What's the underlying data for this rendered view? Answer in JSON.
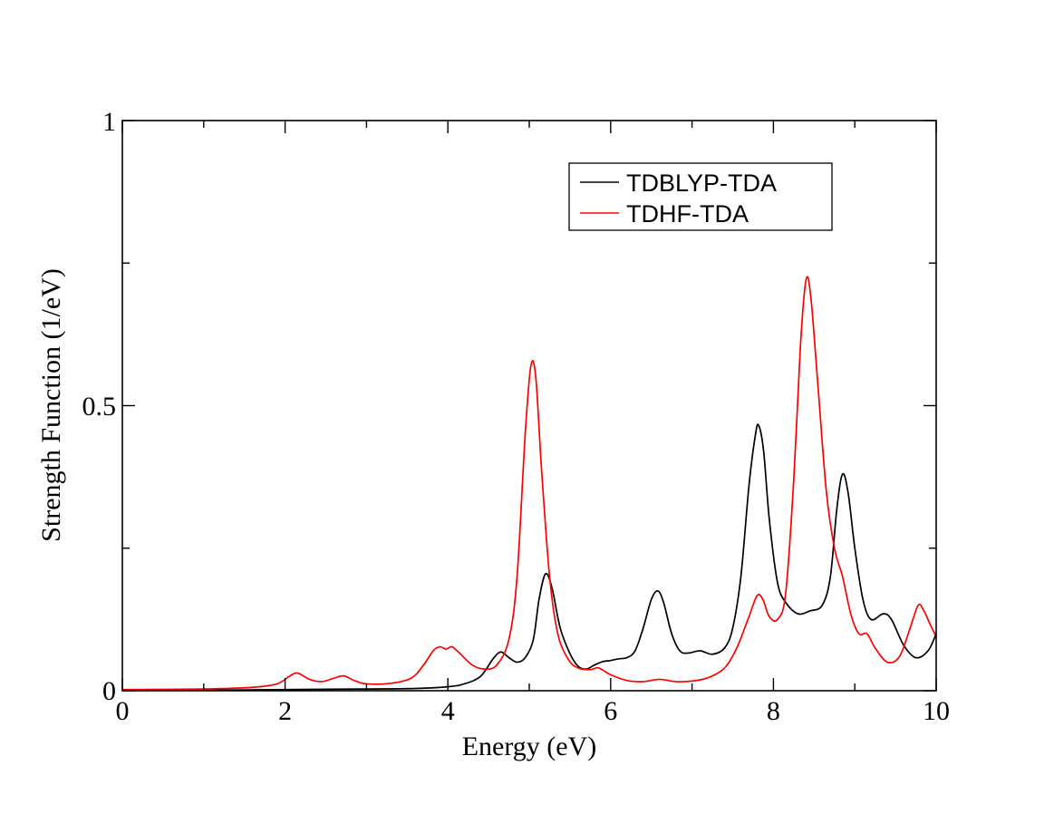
{
  "chart_data": {
    "type": "line",
    "title": "",
    "xlabel": "Energy (eV)",
    "ylabel": "Strength Function (1/eV)",
    "xlim": [
      0,
      10
    ],
    "ylim": [
      0,
      1
    ],
    "grid": false,
    "x_ticks": [
      0,
      2,
      4,
      6,
      8,
      10
    ],
    "x_tick_labels": [
      "0",
      "2",
      "4",
      "6",
      "8",
      "10"
    ],
    "y_ticks": [
      0,
      0.5,
      1
    ],
    "y_tick_labels": [
      "0",
      "0.5",
      "1"
    ],
    "legend_position": "top-right",
    "series": [
      {
        "name": "TDBLYP-TDA",
        "color": "#000000",
        "points": [
          [
            0,
            0.001
          ],
          [
            1,
            0.001
          ],
          [
            2,
            0.002
          ],
          [
            3,
            0.003
          ],
          [
            3.6,
            0.004
          ],
          [
            4,
            0.007
          ],
          [
            4.2,
            0.012
          ],
          [
            4.4,
            0.025
          ],
          [
            4.55,
            0.055
          ],
          [
            4.65,
            0.068
          ],
          [
            4.75,
            0.058
          ],
          [
            4.85,
            0.05
          ],
          [
            4.95,
            0.058
          ],
          [
            5.05,
            0.09
          ],
          [
            5.12,
            0.16
          ],
          [
            5.2,
            0.205
          ],
          [
            5.28,
            0.18
          ],
          [
            5.38,
            0.11
          ],
          [
            5.5,
            0.065
          ],
          [
            5.6,
            0.043
          ],
          [
            5.7,
            0.038
          ],
          [
            5.8,
            0.045
          ],
          [
            5.9,
            0.051
          ],
          [
            6.0,
            0.053
          ],
          [
            6.1,
            0.056
          ],
          [
            6.2,
            0.058
          ],
          [
            6.3,
            0.07
          ],
          [
            6.4,
            0.11
          ],
          [
            6.5,
            0.16
          ],
          [
            6.58,
            0.175
          ],
          [
            6.65,
            0.155
          ],
          [
            6.75,
            0.1
          ],
          [
            6.85,
            0.07
          ],
          [
            6.95,
            0.066
          ],
          [
            7.1,
            0.07
          ],
          [
            7.25,
            0.064
          ],
          [
            7.4,
            0.075
          ],
          [
            7.5,
            0.11
          ],
          [
            7.6,
            0.2
          ],
          [
            7.7,
            0.36
          ],
          [
            7.78,
            0.45
          ],
          [
            7.82,
            0.465
          ],
          [
            7.88,
            0.42
          ],
          [
            7.95,
            0.3
          ],
          [
            8.05,
            0.19
          ],
          [
            8.15,
            0.155
          ],
          [
            8.3,
            0.135
          ],
          [
            8.45,
            0.14
          ],
          [
            8.6,
            0.15
          ],
          [
            8.7,
            0.2
          ],
          [
            8.78,
            0.32
          ],
          [
            8.85,
            0.38
          ],
          [
            8.92,
            0.345
          ],
          [
            9.0,
            0.25
          ],
          [
            9.1,
            0.16
          ],
          [
            9.2,
            0.125
          ],
          [
            9.35,
            0.135
          ],
          [
            9.45,
            0.125
          ],
          [
            9.6,
            0.08
          ],
          [
            9.75,
            0.058
          ],
          [
            9.9,
            0.07
          ],
          [
            10,
            0.1
          ]
        ]
      },
      {
        "name": "TDHF-TDA",
        "color": "#ff0000",
        "points": [
          [
            0,
            0.002
          ],
          [
            1,
            0.003
          ],
          [
            1.6,
            0.006
          ],
          [
            1.9,
            0.012
          ],
          [
            2.05,
            0.025
          ],
          [
            2.15,
            0.031
          ],
          [
            2.3,
            0.02
          ],
          [
            2.45,
            0.016
          ],
          [
            2.6,
            0.022
          ],
          [
            2.72,
            0.026
          ],
          [
            2.85,
            0.018
          ],
          [
            3.0,
            0.012
          ],
          [
            3.3,
            0.013
          ],
          [
            3.55,
            0.022
          ],
          [
            3.7,
            0.045
          ],
          [
            3.82,
            0.07
          ],
          [
            3.9,
            0.077
          ],
          [
            3.98,
            0.073
          ],
          [
            4.05,
            0.077
          ],
          [
            4.15,
            0.065
          ],
          [
            4.3,
            0.045
          ],
          [
            4.45,
            0.038
          ],
          [
            4.6,
            0.045
          ],
          [
            4.75,
            0.09
          ],
          [
            4.85,
            0.2
          ],
          [
            4.95,
            0.45
          ],
          [
            5.02,
            0.57
          ],
          [
            5.08,
            0.55
          ],
          [
            5.15,
            0.39
          ],
          [
            5.25,
            0.2
          ],
          [
            5.35,
            0.1
          ],
          [
            5.48,
            0.055
          ],
          [
            5.6,
            0.04
          ],
          [
            5.75,
            0.037
          ],
          [
            5.85,
            0.04
          ],
          [
            6.0,
            0.028
          ],
          [
            6.2,
            0.018
          ],
          [
            6.4,
            0.016
          ],
          [
            6.6,
            0.02
          ],
          [
            6.8,
            0.016
          ],
          [
            7.0,
            0.017
          ],
          [
            7.2,
            0.023
          ],
          [
            7.4,
            0.04
          ],
          [
            7.55,
            0.075
          ],
          [
            7.7,
            0.13
          ],
          [
            7.8,
            0.167
          ],
          [
            7.87,
            0.16
          ],
          [
            7.95,
            0.13
          ],
          [
            8.05,
            0.125
          ],
          [
            8.15,
            0.17
          ],
          [
            8.25,
            0.37
          ],
          [
            8.33,
            0.6
          ],
          [
            8.4,
            0.72
          ],
          [
            8.46,
            0.69
          ],
          [
            8.55,
            0.53
          ],
          [
            8.65,
            0.35
          ],
          [
            8.75,
            0.25
          ],
          [
            8.85,
            0.2
          ],
          [
            8.95,
            0.135
          ],
          [
            9.05,
            0.1
          ],
          [
            9.15,
            0.1
          ],
          [
            9.25,
            0.075
          ],
          [
            9.4,
            0.05
          ],
          [
            9.55,
            0.06
          ],
          [
            9.68,
            0.11
          ],
          [
            9.78,
            0.15
          ],
          [
            9.85,
            0.14
          ],
          [
            9.93,
            0.115
          ],
          [
            10,
            0.095
          ]
        ]
      }
    ]
  }
}
